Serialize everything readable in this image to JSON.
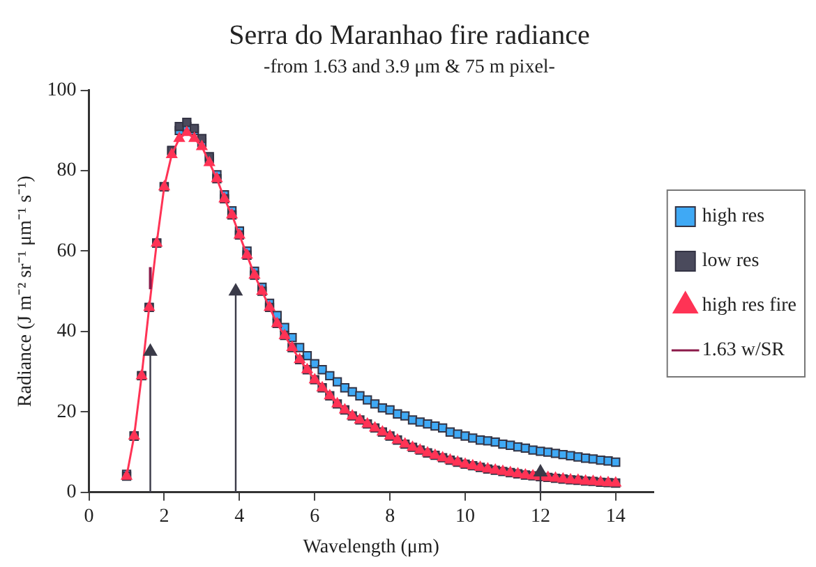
{
  "chart_data": {
    "type": "scatter",
    "title": "Serra do Maranhao fire radiance",
    "subtitle": "-from 1.63 and 3.9 μm & 75 m pixel-",
    "xlabel": "Wavelength (μm)",
    "ylabel": "Radiance (J m⁻² sr⁻¹ μm⁻¹ s⁻¹)",
    "x": [
      1,
      1.2,
      1.4,
      1.6,
      1.8,
      2,
      2.2,
      2.4,
      2.6,
      2.8,
      3,
      3.2,
      3.4,
      3.6,
      3.8,
      4,
      4.2,
      4.4,
      4.6,
      4.8,
      5,
      5.2,
      5.4,
      5.6,
      5.8,
      6,
      6.2,
      6.4,
      6.6,
      6.8,
      7,
      7.2,
      7.4,
      7.6,
      7.8,
      8,
      8.2,
      8.4,
      8.6,
      8.8,
      9,
      9.2,
      9.4,
      9.6,
      9.8,
      10,
      10.2,
      10.4,
      10.6,
      10.8,
      11,
      11.2,
      11.4,
      11.6,
      11.8,
      12,
      12.2,
      12.4,
      12.6,
      12.8,
      13,
      13.2,
      13.4,
      13.6,
      13.8,
      14
    ],
    "series": [
      {
        "name": "high res",
        "type": "scatter",
        "marker": "square",
        "color": "#3fa9f5",
        "values": [
          4.5,
          14,
          29,
          46,
          62,
          76,
          85,
          90,
          91,
          90,
          87,
          83,
          79,
          74,
          70,
          65,
          60,
          55,
          51,
          47,
          44,
          41,
          38.5,
          36,
          34,
          32,
          30.5,
          29,
          27.5,
          26,
          25,
          24,
          23,
          22,
          21,
          20.5,
          19.5,
          19,
          18,
          17.5,
          17,
          16.5,
          16,
          15,
          14.5,
          14,
          13.5,
          13,
          12.8,
          12.5,
          12,
          11.7,
          11.3,
          11,
          10.5,
          10.2,
          10,
          9.7,
          9.4,
          9.1,
          8.8,
          8.5,
          8.3,
          8,
          7.8,
          7.5
        ]
      },
      {
        "name": "low res",
        "type": "scatter",
        "marker": "square",
        "color": "#4a4a5c",
        "values": [
          4,
          14,
          29,
          46,
          62,
          76,
          85,
          91,
          92,
          90.5,
          88,
          83.5,
          78,
          73,
          69,
          64,
          59,
          54,
          50,
          46,
          42,
          39,
          36,
          33,
          30.5,
          28,
          26,
          24,
          22,
          20.5,
          19,
          18,
          17,
          16,
          15,
          14,
          13,
          12,
          11.2,
          10.5,
          9.8,
          9.2,
          8.6,
          8,
          7.5,
          7,
          6.6,
          6.2,
          5.8,
          5.5,
          5.2,
          4.9,
          4.6,
          4.3,
          4.1,
          3.9,
          3.7,
          3.5,
          3.3,
          3.1,
          3,
          2.8,
          2.7,
          2.5,
          2.4,
          2.3
        ]
      },
      {
        "name": "high res fire",
        "type": "line",
        "marker": "triangle",
        "line_style": "solid",
        "color": "#ff3355",
        "values": [
          4,
          14,
          29,
          46,
          62,
          76,
          84,
          88,
          89.5,
          88,
          86,
          82,
          78,
          73,
          69,
          64,
          59,
          54,
          50,
          46,
          42,
          39,
          36,
          33,
          30.5,
          28,
          26,
          24,
          22,
          20.5,
          19,
          18,
          17,
          16,
          15,
          14,
          13,
          12,
          11.2,
          10.5,
          9.8,
          9.2,
          8.6,
          8,
          7.5,
          7,
          6.6,
          6.2,
          5.8,
          5.5,
          5.2,
          4.9,
          4.6,
          4.3,
          4.1,
          3.9,
          3.7,
          3.5,
          3.3,
          3.1,
          3,
          2.8,
          2.7,
          2.5,
          2.4,
          2.3
        ]
      },
      {
        "name": "1.63 w/SR",
        "type": "line",
        "marker": "none",
        "line_style": "solid",
        "color": "#8b1a4a",
        "x": [
          1.63,
          1.63
        ],
        "values": [
          50.5,
          56
        ]
      },
      {
        "type": "lollipop",
        "marker": "triangle",
        "color": "#3a3a48",
        "x": [
          1.63,
          3.9,
          12
        ],
        "values": [
          35,
          50,
          5
        ]
      }
    ],
    "xlim": [
      0,
      15
    ],
    "xticks": [
      0,
      2,
      4,
      6,
      8,
      10,
      12,
      14
    ],
    "ylim": [
      0,
      100
    ],
    "yticks": [
      0,
      20,
      40,
      60,
      80,
      100
    ],
    "grid": false,
    "legend": "right"
  }
}
